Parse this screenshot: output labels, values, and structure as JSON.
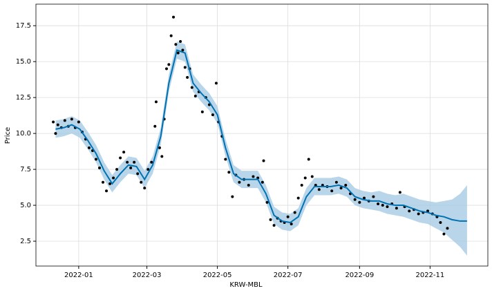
{
  "chart_data": {
    "type": "forecast",
    "xlabel": "KRW-MBL",
    "ylabel": "Price",
    "xlim": [
      "2021-11-25",
      "2022-12-21"
    ],
    "ylim": [
      0.77,
      19.0
    ],
    "xticks": [
      {
        "value": "2022-01-01",
        "label": "2022-01"
      },
      {
        "value": "2022-03-01",
        "label": "2022-03"
      },
      {
        "value": "2022-05-01",
        "label": "2022-05"
      },
      {
        "value": "2022-07-01",
        "label": "2022-07"
      },
      {
        "value": "2022-09-01",
        "label": "2022-09"
      },
      {
        "value": "2022-11-01",
        "label": "2022-11"
      }
    ],
    "yticks": [
      2.5,
      {
        "value": 5,
        "label": "5.0"
      },
      7.5,
      {
        "value": 10,
        "label": "10.0"
      },
      12.5,
      {
        "value": 15,
        "label": "15.0"
      },
      17.5
    ],
    "grid": true,
    "forecast": {
      "color": "#0072b2",
      "band_color": "#a6cbe3",
      "x": [
        "2021-12-12",
        "2021-12-19",
        "2021-12-26",
        "2022-01-02",
        "2022-01-09",
        "2022-01-16",
        "2022-01-23",
        "2022-01-30",
        "2022-02-06",
        "2022-02-13",
        "2022-02-20",
        "2022-02-27",
        "2022-03-06",
        "2022-03-13",
        "2022-03-20",
        "2022-03-27",
        "2022-04-03",
        "2022-04-10",
        "2022-04-17",
        "2022-04-24",
        "2022-05-01",
        "2022-05-08",
        "2022-05-15",
        "2022-05-22",
        "2022-05-29",
        "2022-06-05",
        "2022-06-12",
        "2022-06-19",
        "2022-06-26",
        "2022-07-03",
        "2022-07-10",
        "2022-07-17",
        "2022-07-24",
        "2022-07-31",
        "2022-08-07",
        "2022-08-14",
        "2022-08-21",
        "2022-08-28",
        "2022-09-04",
        "2022-09-11",
        "2022-09-18",
        "2022-09-25",
        "2022-10-02",
        "2022-10-09",
        "2022-10-16",
        "2022-10-23",
        "2022-10-30",
        "2022-11-06",
        "2022-11-13",
        "2022-11-20",
        "2022-11-27",
        "2022-12-03"
      ],
      "values": [
        10.3,
        10.4,
        10.6,
        10.3,
        9.5,
        8.6,
        7.4,
        6.5,
        7.2,
        7.8,
        7.7,
        6.8,
        7.8,
        9.8,
        13.5,
        15.8,
        15.6,
        13.5,
        12.8,
        12.2,
        11.3,
        9.0,
        7.2,
        6.8,
        6.8,
        6.8,
        5.8,
        4.3,
        3.9,
        3.8,
        4.2,
        5.6,
        6.3,
        6.3,
        6.3,
        6.4,
        6.2,
        5.6,
        5.4,
        5.3,
        5.3,
        5.1,
        5.0,
        5.0,
        4.8,
        4.6,
        4.5,
        4.3,
        4.2,
        4.0,
        3.9,
        3.9
      ],
      "lower": [
        9.7,
        9.8,
        10.0,
        9.7,
        8.9,
        8.0,
        6.8,
        5.9,
        6.6,
        7.2,
        7.1,
        6.2,
        7.2,
        9.2,
        12.9,
        15.2,
        15.0,
        12.9,
        12.2,
        11.6,
        10.7,
        8.4,
        6.6,
        6.2,
        6.2,
        6.2,
        5.2,
        3.7,
        3.3,
        3.2,
        3.6,
        5.0,
        5.7,
        5.7,
        5.7,
        5.8,
        5.6,
        5.0,
        4.8,
        4.7,
        4.6,
        4.4,
        4.3,
        4.2,
        4.0,
        3.8,
        3.7,
        3.4,
        3.1,
        2.6,
        2.1,
        1.5
      ],
      "upper": [
        10.9,
        11.0,
        11.2,
        10.9,
        10.1,
        9.2,
        8.0,
        7.1,
        7.8,
        8.4,
        8.3,
        7.4,
        8.4,
        10.4,
        14.1,
        16.4,
        16.2,
        14.1,
        13.4,
        12.8,
        11.9,
        9.6,
        7.8,
        7.4,
        7.4,
        7.4,
        6.4,
        4.9,
        4.5,
        4.4,
        4.8,
        6.2,
        6.9,
        6.9,
        6.9,
        7.0,
        6.8,
        6.2,
        6.0,
        5.9,
        6.0,
        5.8,
        5.7,
        5.8,
        5.6,
        5.4,
        5.3,
        5.2,
        5.3,
        5.4,
        5.8,
        6.4
      ]
    },
    "observations": {
      "color": "#000000",
      "x": [
        "2021-12-10",
        "2021-12-12",
        "2021-12-14",
        "2021-12-17",
        "2021-12-20",
        "2021-12-23",
        "2021-12-26",
        "2021-12-29",
        "2022-01-01",
        "2022-01-04",
        "2022-01-07",
        "2022-01-10",
        "2022-01-13",
        "2022-01-16",
        "2022-01-19",
        "2022-01-22",
        "2022-01-25",
        "2022-01-28",
        "2022-01-31",
        "2022-02-03",
        "2022-02-06",
        "2022-02-09",
        "2022-02-12",
        "2022-02-15",
        "2022-02-18",
        "2022-02-21",
        "2022-02-24",
        "2022-02-27",
        "2022-03-02",
        "2022-03-05",
        "2022-03-08",
        "2022-03-09",
        "2022-03-12",
        "2022-03-14",
        "2022-03-16",
        "2022-03-18",
        "2022-03-20",
        "2022-03-22",
        "2022-03-24",
        "2022-03-26",
        "2022-03-28",
        "2022-03-30",
        "2022-04-01",
        "2022-04-03",
        "2022-04-05",
        "2022-04-07",
        "2022-04-09",
        "2022-04-12",
        "2022-04-15",
        "2022-04-18",
        "2022-04-21",
        "2022-04-24",
        "2022-04-27",
        "2022-04-30",
        "2022-05-02",
        "2022-05-05",
        "2022-05-08",
        "2022-05-11",
        "2022-05-14",
        "2022-05-17",
        "2022-05-20",
        "2022-05-24",
        "2022-05-28",
        "2022-06-01",
        "2022-06-05",
        "2022-06-09",
        "2022-06-10",
        "2022-06-13",
        "2022-06-16",
        "2022-06-19",
        "2022-06-22",
        "2022-06-25",
        "2022-06-28",
        "2022-07-01",
        "2022-07-04",
        "2022-07-07",
        "2022-07-10",
        "2022-07-13",
        "2022-07-16",
        "2022-07-19",
        "2022-07-22",
        "2022-07-25",
        "2022-07-28",
        "2022-07-31",
        "2022-08-04",
        "2022-08-08",
        "2022-08-12",
        "2022-08-16",
        "2022-08-20",
        "2022-08-24",
        "2022-08-28",
        "2022-09-01",
        "2022-09-05",
        "2022-09-09",
        "2022-09-13",
        "2022-09-17",
        "2022-09-21",
        "2022-09-25",
        "2022-09-29",
        "2022-10-03",
        "2022-10-06",
        "2022-10-10",
        "2022-10-14",
        "2022-10-18",
        "2022-10-22",
        "2022-10-26",
        "2022-10-30",
        "2022-11-03",
        "2022-11-07",
        "2022-11-10",
        "2022-11-13",
        "2022-11-16"
      ],
      "values": [
        10.8,
        10.0,
        10.6,
        10.4,
        10.9,
        10.5,
        11.0,
        10.4,
        10.8,
        10.1,
        9.6,
        9.0,
        8.8,
        8.2,
        7.6,
        6.6,
        6.0,
        6.5,
        6.9,
        7.5,
        8.3,
        8.7,
        8.0,
        7.6,
        8.0,
        7.2,
        6.6,
        6.2,
        7.5,
        8.0,
        10.5,
        12.2,
        9.0,
        8.4,
        11.0,
        14.5,
        14.8,
        16.8,
        18.1,
        16.2,
        15.6,
        16.4,
        15.8,
        14.6,
        13.9,
        14.5,
        13.2,
        12.6,
        12.9,
        11.5,
        12.5,
        12.0,
        11.3,
        13.5,
        10.8,
        9.8,
        8.2,
        7.3,
        5.6,
        7.1,
        6.6,
        6.8,
        6.4,
        7.0,
        6.9,
        6.6,
        8.1,
        5.2,
        4.0,
        3.6,
        4.1,
        3.9,
        3.8,
        4.2,
        3.7,
        4.5,
        5.5,
        6.4,
        6.9,
        8.2,
        7.0,
        6.4,
        6.1,
        6.4,
        6.3,
        6.0,
        6.6,
        6.2,
        6.4,
        5.8,
        5.4,
        5.2,
        5.5,
        5.3,
        5.6,
        5.1,
        5.0,
        4.9,
        5.1,
        4.8,
        5.9,
        4.9,
        4.6,
        4.7,
        4.4,
        4.5,
        4.6,
        4.4,
        4.2,
        3.8,
        3.0,
        3.4
      ]
    }
  }
}
